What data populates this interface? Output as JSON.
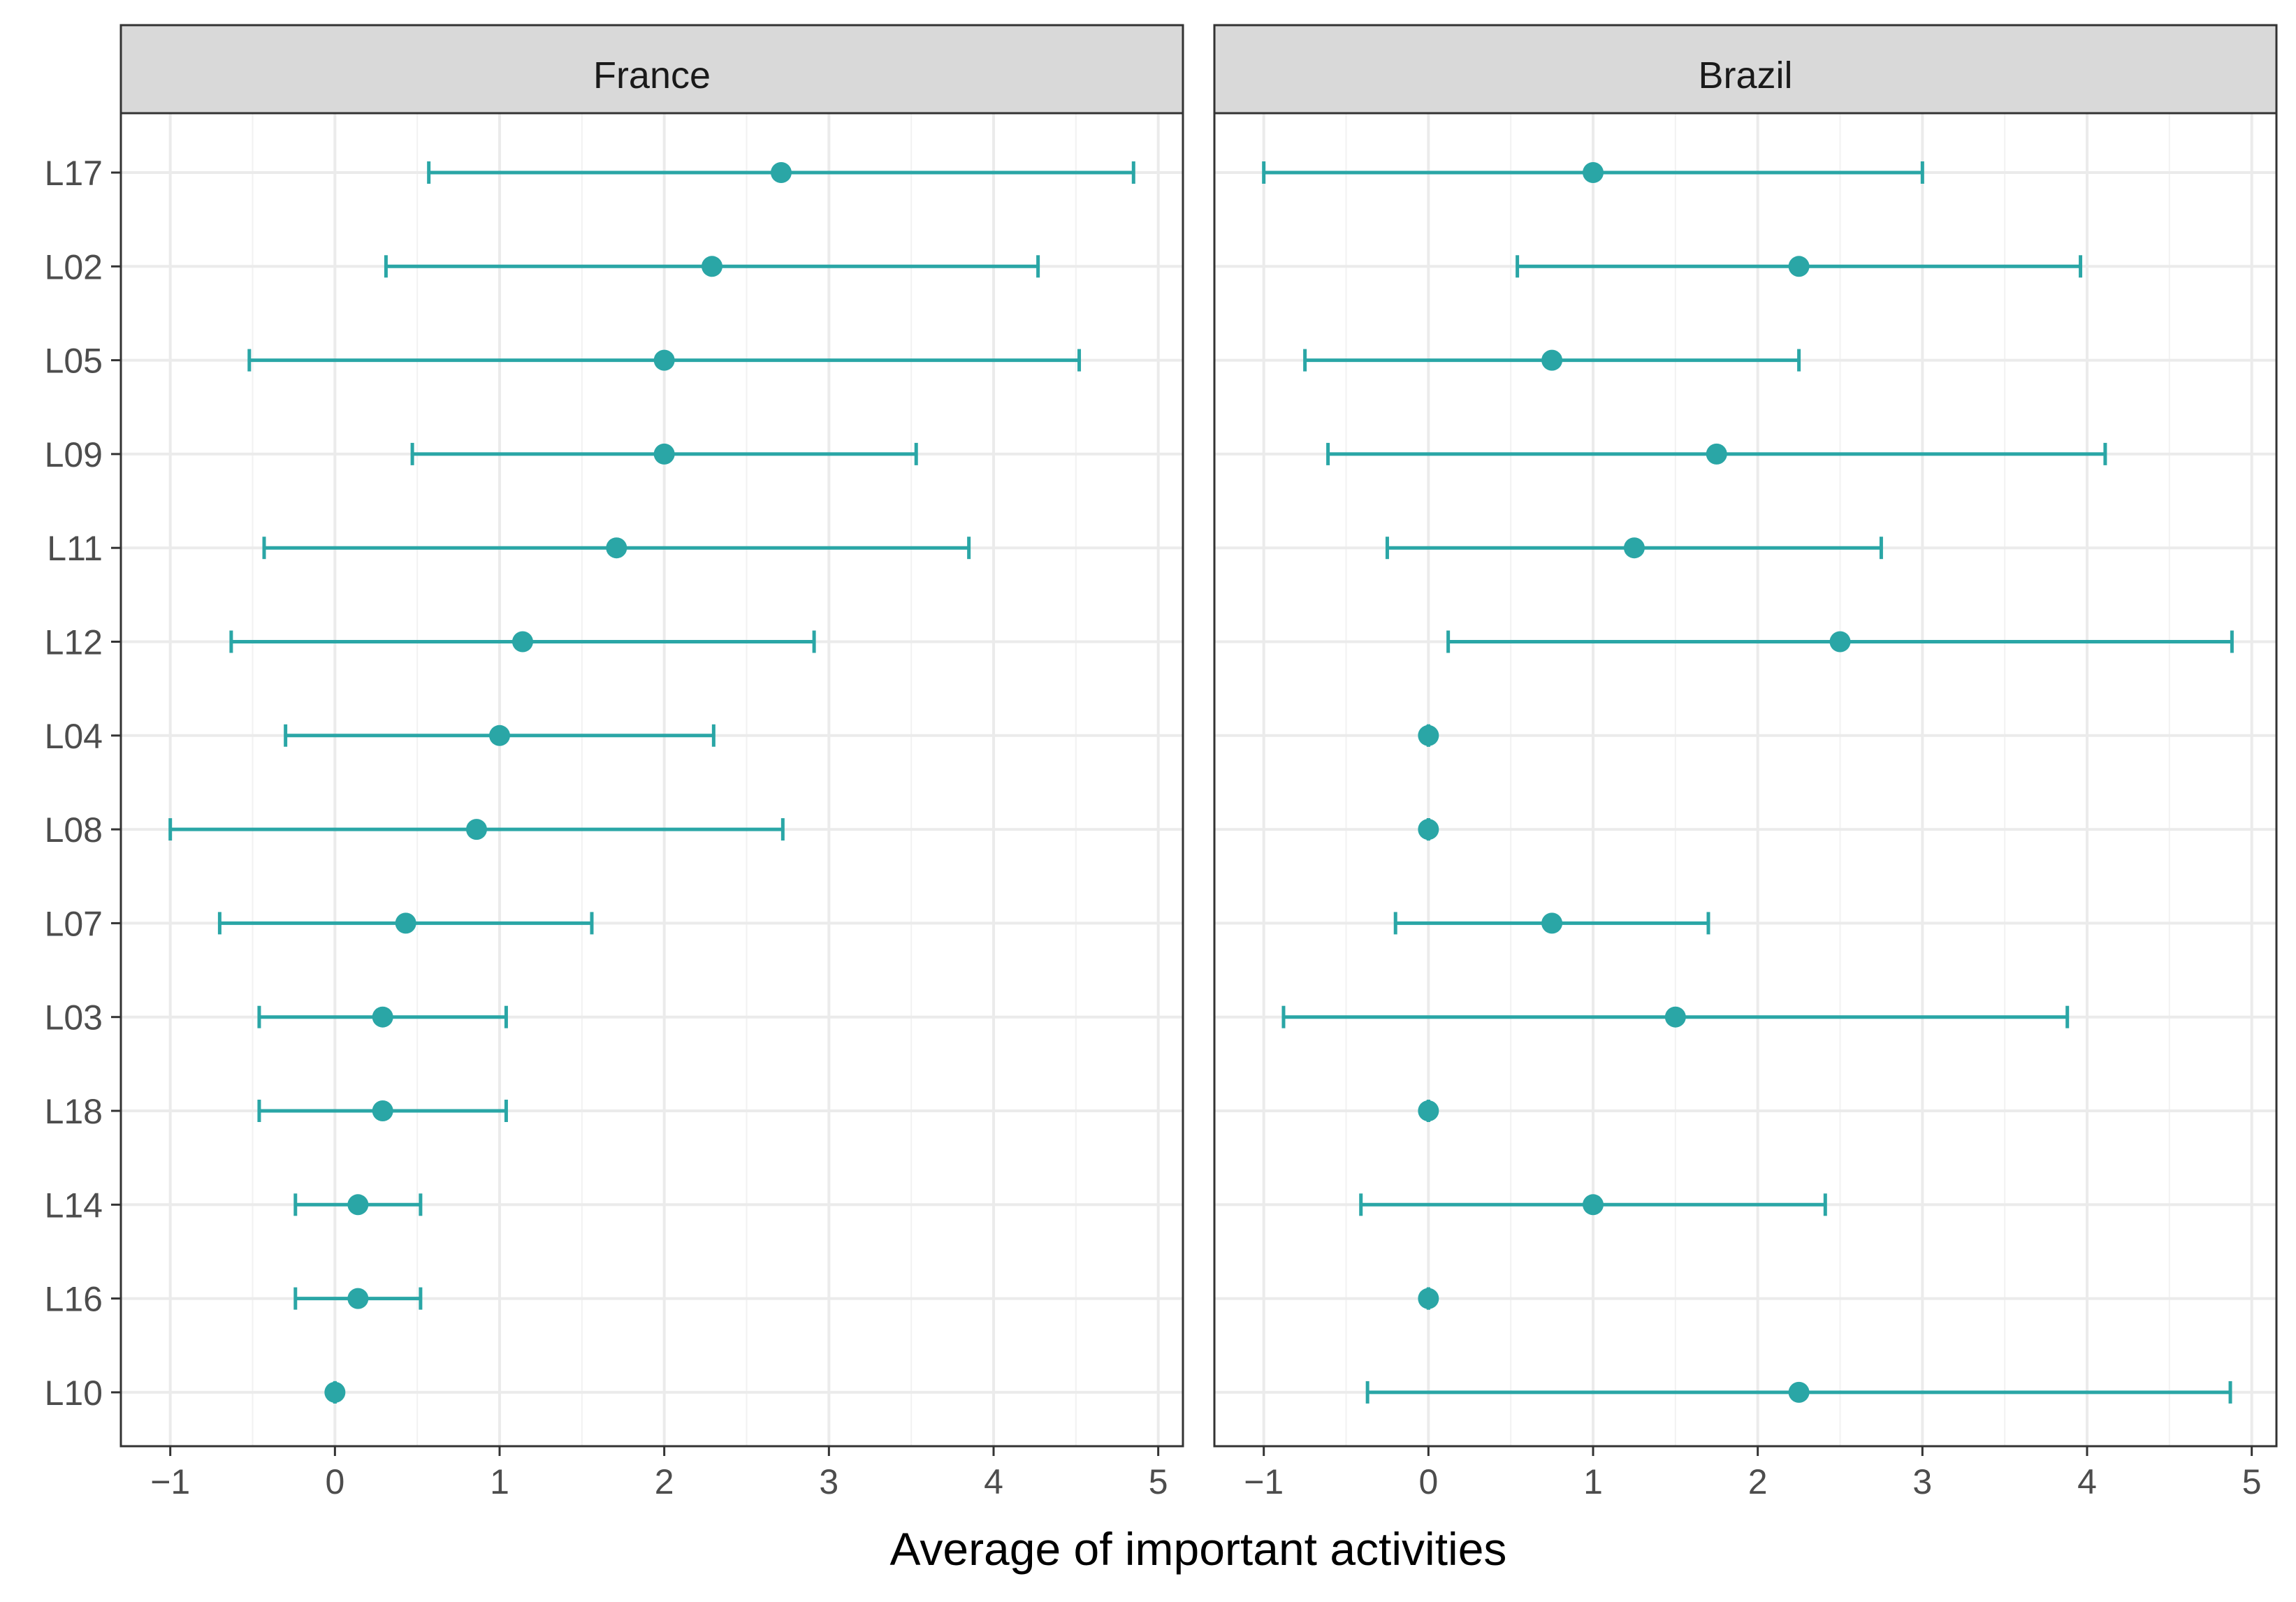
{
  "chart_data": {
    "type": "scatter",
    "subtype": "point-with-error-bars",
    "xlabel": "Average of important activities",
    "ylabel": "",
    "xlim": [
      -1.3,
      5.15
    ],
    "x_ticks": [
      -1,
      0,
      1,
      2,
      3,
      4,
      5
    ],
    "x_tick_labels": [
      "−1",
      "0",
      "1",
      "2",
      "3",
      "4",
      "5"
    ],
    "grid": true,
    "color": "#2aa6a6",
    "categories": [
      "L17",
      "L02",
      "L05",
      "L09",
      "L11",
      "L12",
      "L04",
      "L08",
      "L07",
      "L03",
      "L18",
      "L14",
      "L16",
      "L10"
    ],
    "panels": [
      {
        "title": "France",
        "points": [
          {
            "label": "L17",
            "mean": 2.71,
            "low": 0.57,
            "high": 4.85
          },
          {
            "label": "L02",
            "mean": 2.29,
            "low": 0.31,
            "high": 4.27
          },
          {
            "label": "L05",
            "mean": 2.0,
            "low": -0.52,
            "high": 4.52
          },
          {
            "label": "L09",
            "mean": 2.0,
            "low": 0.47,
            "high": 3.53
          },
          {
            "label": "L11",
            "mean": 1.71,
            "low": -0.43,
            "high": 3.85
          },
          {
            "label": "L12",
            "mean": 1.14,
            "low": -0.63,
            "high": 2.91
          },
          {
            "label": "L04",
            "mean": 1.0,
            "low": -0.3,
            "high": 2.3
          },
          {
            "label": "L08",
            "mean": 0.86,
            "low": -1.0,
            "high": 2.72
          },
          {
            "label": "L07",
            "mean": 0.43,
            "low": -0.7,
            "high": 1.56
          },
          {
            "label": "L03",
            "mean": 0.29,
            "low": -0.46,
            "high": 1.04
          },
          {
            "label": "L18",
            "mean": 0.29,
            "low": -0.46,
            "high": 1.04
          },
          {
            "label": "L14",
            "mean": 0.14,
            "low": -0.24,
            "high": 0.52
          },
          {
            "label": "L16",
            "mean": 0.14,
            "low": -0.24,
            "high": 0.52
          },
          {
            "label": "L10",
            "mean": 0.0,
            "low": 0.0,
            "high": 0.0
          }
        ]
      },
      {
        "title": "Brazil",
        "points": [
          {
            "label": "L17",
            "mean": 1.0,
            "low": -1.0,
            "high": 3.0
          },
          {
            "label": "L02",
            "mean": 2.25,
            "low": 0.54,
            "high": 3.96
          },
          {
            "label": "L05",
            "mean": 0.75,
            "low": -0.75,
            "high": 2.25
          },
          {
            "label": "L09",
            "mean": 1.75,
            "low": -0.61,
            "high": 4.11
          },
          {
            "label": "L11",
            "mean": 1.25,
            "low": -0.25,
            "high": 2.75
          },
          {
            "label": "L12",
            "mean": 2.5,
            "low": 0.12,
            "high": 4.88
          },
          {
            "label": "L04",
            "mean": 0.0,
            "low": 0.0,
            "high": 0.0
          },
          {
            "label": "L08",
            "mean": 0.0,
            "low": 0.0,
            "high": 0.0
          },
          {
            "label": "L07",
            "mean": 0.75,
            "low": -0.2,
            "high": 1.7
          },
          {
            "label": "L03",
            "mean": 1.5,
            "low": -0.88,
            "high": 3.88
          },
          {
            "label": "L18",
            "mean": 0.0,
            "low": 0.0,
            "high": 0.0
          },
          {
            "label": "L14",
            "mean": 1.0,
            "low": -0.41,
            "high": 2.41
          },
          {
            "label": "L16",
            "mean": 0.0,
            "low": 0.0,
            "high": 0.0
          },
          {
            "label": "L10",
            "mean": 2.25,
            "low": -0.37,
            "high": 4.87
          }
        ]
      }
    ]
  }
}
